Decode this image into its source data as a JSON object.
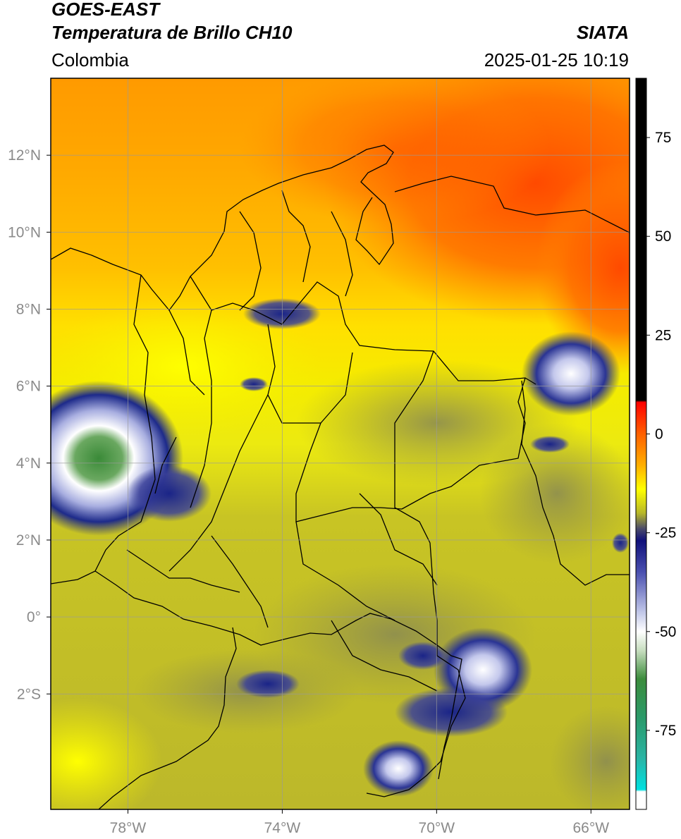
{
  "header": {
    "title_line1": "GOES-EAST",
    "title_line2": "Temperatura de Brillo CH10",
    "agency": "SIATA",
    "region": "Colombia",
    "timestamp": "2025-01-25 10:19"
  },
  "map": {
    "lat_ticks": [
      {
        "label": "12°N",
        "lat": 12
      },
      {
        "label": "10°N",
        "lat": 10
      },
      {
        "label": "8°N",
        "lat": 8
      },
      {
        "label": "6°N",
        "lat": 6
      },
      {
        "label": "4°N",
        "lat": 4
      },
      {
        "label": "2°N",
        "lat": 2
      },
      {
        "label": "0°",
        "lat": 0
      },
      {
        "label": "2°S",
        "lat": -2
      }
    ],
    "lon_ticks": [
      {
        "label": "78°W",
        "lon": -78
      },
      {
        "label": "74°W",
        "lon": -74
      },
      {
        "label": "70°W",
        "lon": -70
      },
      {
        "label": "66°W",
        "lon": -66
      }
    ],
    "lon_range": [
      -80,
      -65
    ],
    "lat_range": [
      -5,
      14
    ],
    "colors": {
      "warm_north": "#ff6a00",
      "yellow": "#f0e000",
      "olive": "#b9b428",
      "grey": "#8a8b5a",
      "navy": "#1d2a8a",
      "white": "#ffffff",
      "green": "#3c8c3c"
    }
  },
  "colorbar": {
    "ticks": [
      {
        "label": "75",
        "value": 75
      },
      {
        "label": "50",
        "value": 50
      },
      {
        "label": "25",
        "value": 25
      },
      {
        "label": "0",
        "value": 0
      },
      {
        "label": "-25",
        "value": -25
      },
      {
        "label": "-50",
        "value": -50
      },
      {
        "label": "-75",
        "value": -75
      }
    ],
    "range": [
      -95,
      90
    ],
    "stops": [
      {
        "value": 90,
        "color": "#000000"
      },
      {
        "value": 8.5,
        "color": "#000000"
      },
      {
        "value": 8,
        "color": "#ff0000"
      },
      {
        "value": 0,
        "color": "#ff6000"
      },
      {
        "value": -8,
        "color": "#ffb000"
      },
      {
        "value": -14,
        "color": "#ffff00"
      },
      {
        "value": -20,
        "color": "#b8b828"
      },
      {
        "value": -24,
        "color": "#4a4a6a"
      },
      {
        "value": -27,
        "color": "#10107a"
      },
      {
        "value": -35,
        "color": "#4a50b0"
      },
      {
        "value": -45,
        "color": "#c0c6e8"
      },
      {
        "value": -50,
        "color": "#ffffff"
      },
      {
        "value": -55,
        "color": "#c4dcbc"
      },
      {
        "value": -62,
        "color": "#3c8c3c"
      },
      {
        "value": -72,
        "color": "#2a9a6a"
      },
      {
        "value": -82,
        "color": "#2ab4a4"
      },
      {
        "value": -90,
        "color": "#00e0e0"
      },
      {
        "value": -90.5,
        "color": "#ffffff"
      },
      {
        "value": -95,
        "color": "#ffffff"
      }
    ]
  }
}
